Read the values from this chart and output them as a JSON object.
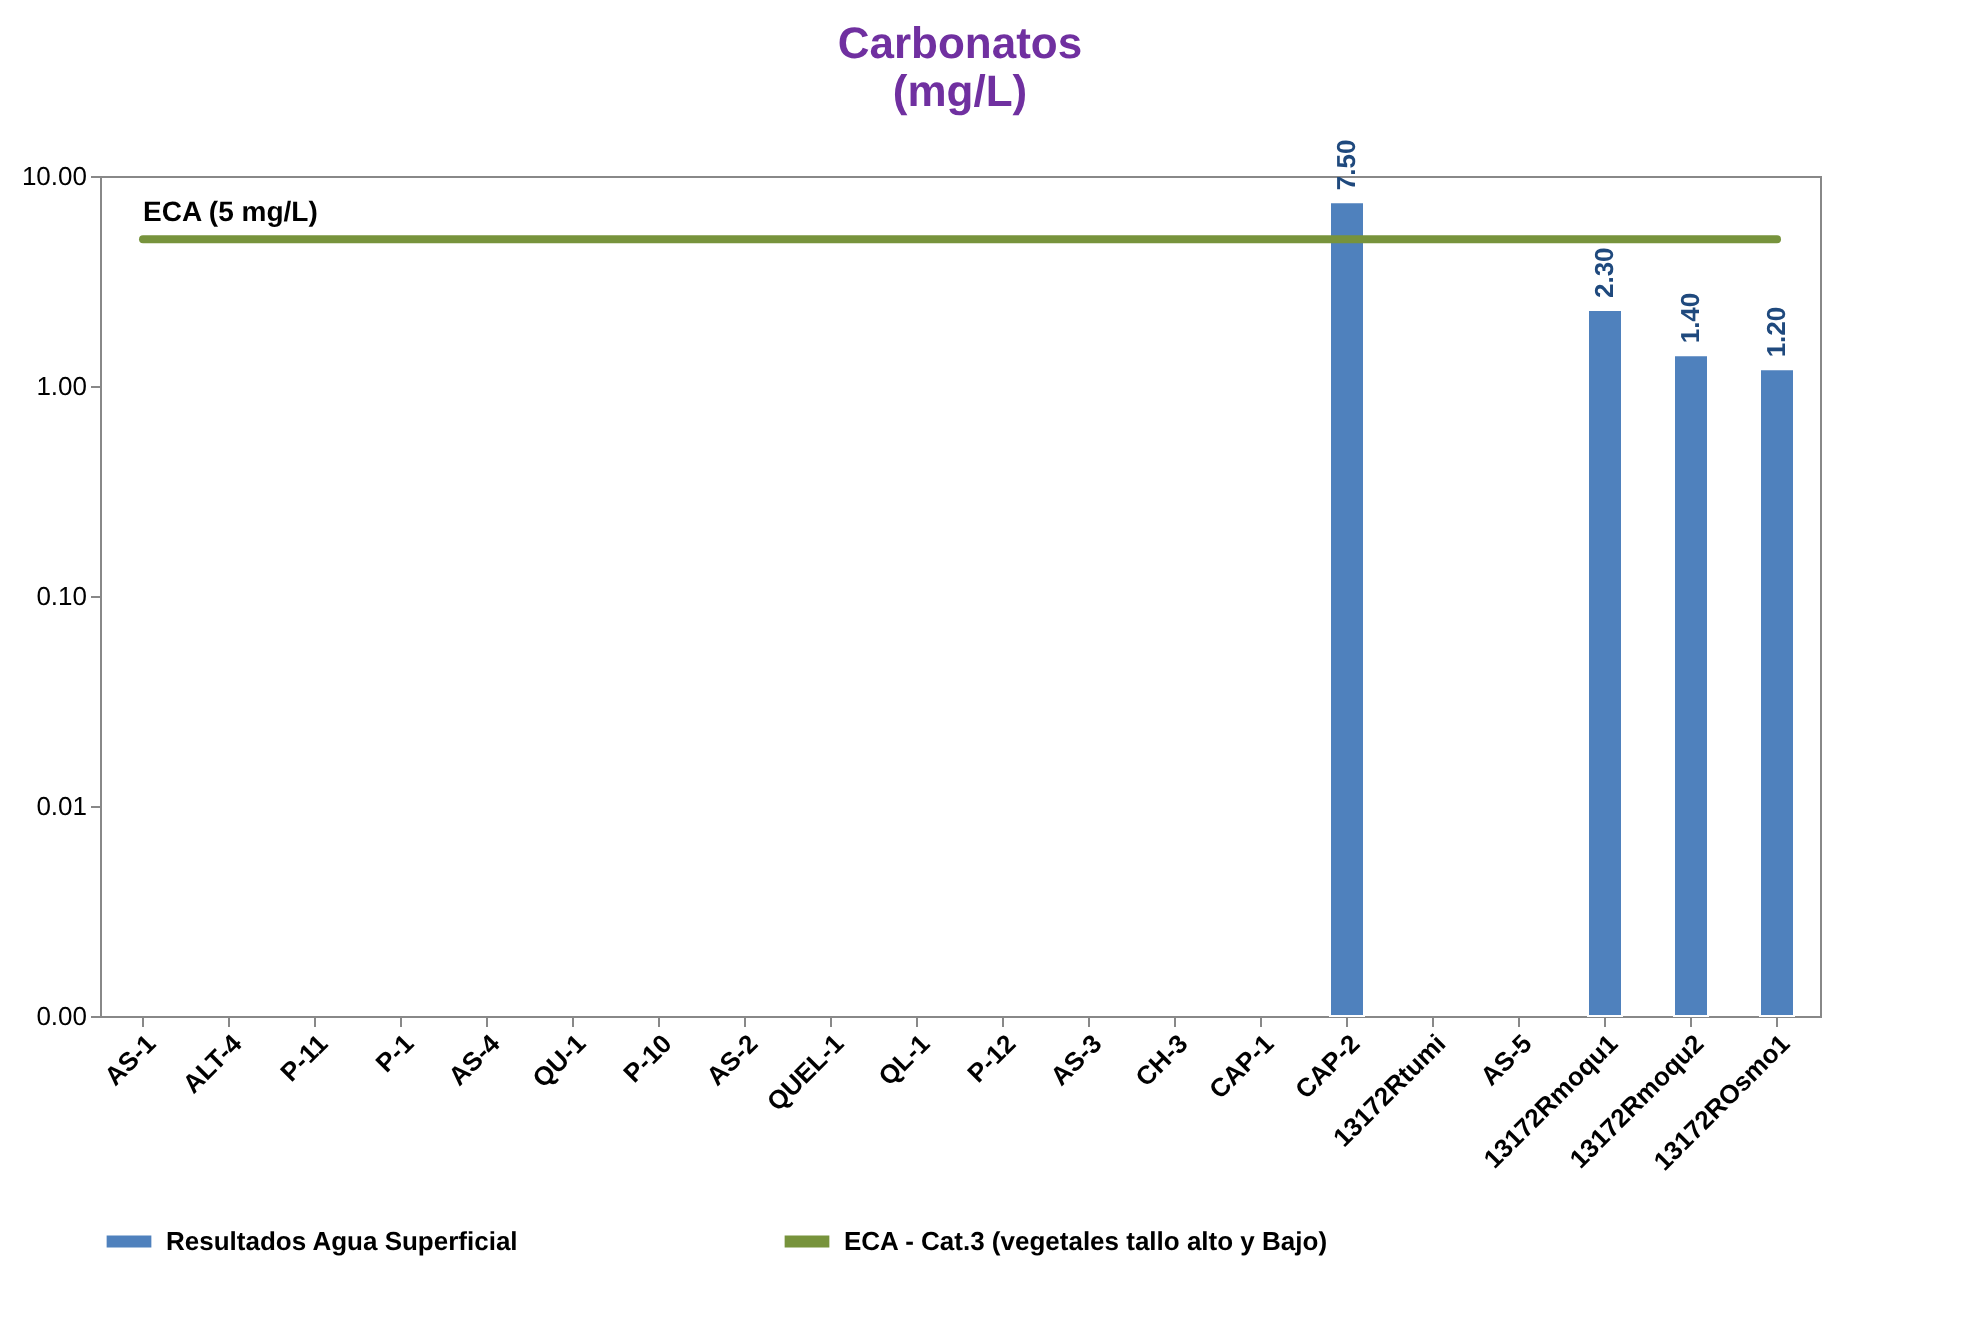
{
  "chart_data": {
    "type": "bar",
    "title": "Carbonatos (mg/L)",
    "categories": [
      "AS-1",
      "ALT-4",
      "P-11",
      "P-1",
      "AS-4",
      "QU-1",
      "P-10",
      "AS-2",
      "QUEL-1",
      "QL-1",
      "P-12",
      "AS-3",
      "CH-3",
      "CAP-1",
      "CAP-2",
      "13172Rtumi",
      "AS-5",
      "13172Rmoqu1",
      "13172Rmoqu2",
      "13172ROsmo1"
    ],
    "series": [
      {
        "name": "Resultados Agua Superficial",
        "color": "#4f81bd",
        "values": [
          null,
          null,
          null,
          null,
          null,
          null,
          null,
          null,
          null,
          null,
          null,
          null,
          null,
          null,
          7.5,
          null,
          null,
          2.3,
          1.4,
          1.2
        ],
        "value_labels": [
          null,
          null,
          null,
          null,
          null,
          null,
          null,
          null,
          null,
          null,
          null,
          null,
          null,
          null,
          "7.50",
          null,
          null,
          "2.30",
          "1.40",
          "1.20"
        ]
      },
      {
        "name": "ECA - Cat.3 (vegetales tallo alto y Bajo)",
        "type": "line",
        "color": "#77933c",
        "values": [
          5,
          5,
          5,
          5,
          5,
          5,
          5,
          5,
          5,
          5,
          5,
          5,
          5,
          5,
          5,
          5,
          5,
          5,
          5,
          5
        ]
      }
    ],
    "log": "y",
    "ylim": [
      0.001,
      10
    ],
    "yticks": [
      {
        "value": 0.001,
        "label": "0.00"
      },
      {
        "value": 0.01,
        "label": "0.01"
      },
      {
        "value": 0.1,
        "label": "0.10"
      },
      {
        "value": 1,
        "label": "1.00"
      },
      {
        "value": 10,
        "label": "10.00"
      }
    ],
    "legend": "bottom",
    "annotations": [
      {
        "text": "ECA  (5 mg/L)",
        "x": "AS-1",
        "y": 5
      }
    ]
  }
}
